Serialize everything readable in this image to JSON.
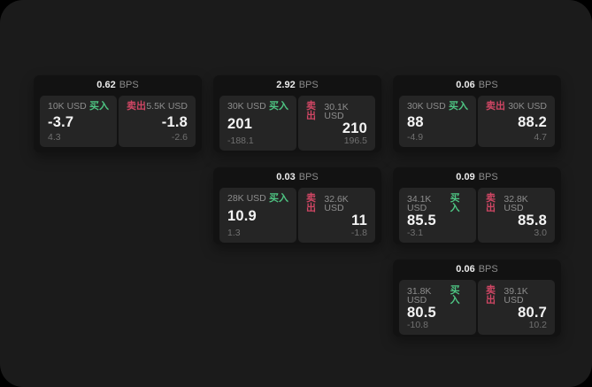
{
  "labels": {
    "buy": "买入",
    "sell": "卖出",
    "bps_unit": "BPS"
  },
  "colors": {
    "buy_green": "#4ec583",
    "sell_red": "#cf4664",
    "window_bg": "#1b1b1b",
    "card_bg": "#121212",
    "panel_bg": "#252525"
  },
  "cards": [
    {
      "col": 1,
      "row": 1,
      "bps": "0.62",
      "buy": {
        "amount": "10K USD",
        "price": "-3.7",
        "delta": "4.3"
      },
      "sell": {
        "amount": "5.5K USD",
        "price": "-1.8",
        "delta": "-2.6"
      }
    },
    {
      "col": 2,
      "row": 1,
      "bps": "2.92",
      "buy": {
        "amount": "30K USD",
        "price": "201",
        "delta": "-188.1"
      },
      "sell": {
        "amount": "30.1K USD",
        "price": "210",
        "delta": "196.5"
      }
    },
    {
      "col": 3,
      "row": 1,
      "bps": "0.06",
      "buy": {
        "amount": "30K USD",
        "price": "88",
        "delta": "-4.9"
      },
      "sell": {
        "amount": "30K USD",
        "price": "88.2",
        "delta": "4.7"
      }
    },
    {
      "col": 2,
      "row": 2,
      "bps": "0.03",
      "buy": {
        "amount": "28K USD",
        "price": "10.9",
        "delta": "1.3"
      },
      "sell": {
        "amount": "32.6K USD",
        "price": "11",
        "delta": "-1.8"
      }
    },
    {
      "col": 3,
      "row": 2,
      "bps": "0.09",
      "buy": {
        "amount": "34.1K USD",
        "price": "85.5",
        "delta": "-3.1"
      },
      "sell": {
        "amount": "32.8K USD",
        "price": "85.8",
        "delta": "3.0"
      }
    },
    {
      "col": 3,
      "row": 3,
      "bps": "0.06",
      "buy": {
        "amount": "31.8K USD",
        "price": "80.5",
        "delta": "-10.8"
      },
      "sell": {
        "amount": "39.1K USD",
        "price": "80.7",
        "delta": "10.2"
      }
    }
  ]
}
